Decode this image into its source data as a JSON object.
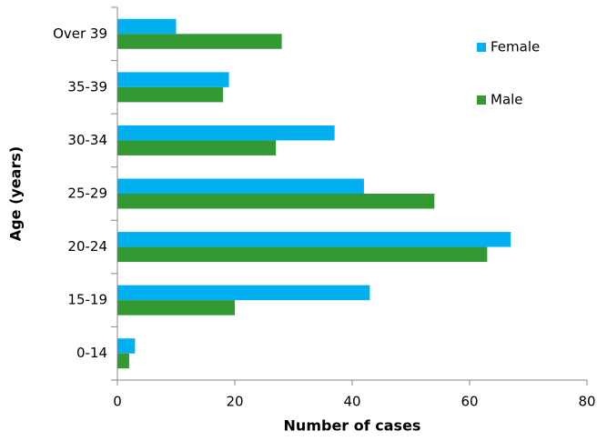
{
  "chart_data": {
    "type": "barh",
    "xlabel": "Number of cases",
    "ylabel": "Age (years)",
    "categories": [
      "0-14",
      "15-19",
      "20-24",
      "25-29",
      "30-34",
      "35-39",
      "Over 39"
    ],
    "series": [
      {
        "name": "Female",
        "color": "#00b0f0",
        "values": [
          3,
          43,
          67,
          42,
          37,
          19,
          10
        ]
      },
      {
        "name": "Male",
        "color": "#339933",
        "values": [
          2,
          20,
          63,
          54,
          27,
          18,
          28
        ]
      }
    ],
    "xlim": [
      0,
      80
    ],
    "xticks": [
      0,
      20,
      40,
      60,
      80
    ],
    "legend": "upper right"
  }
}
